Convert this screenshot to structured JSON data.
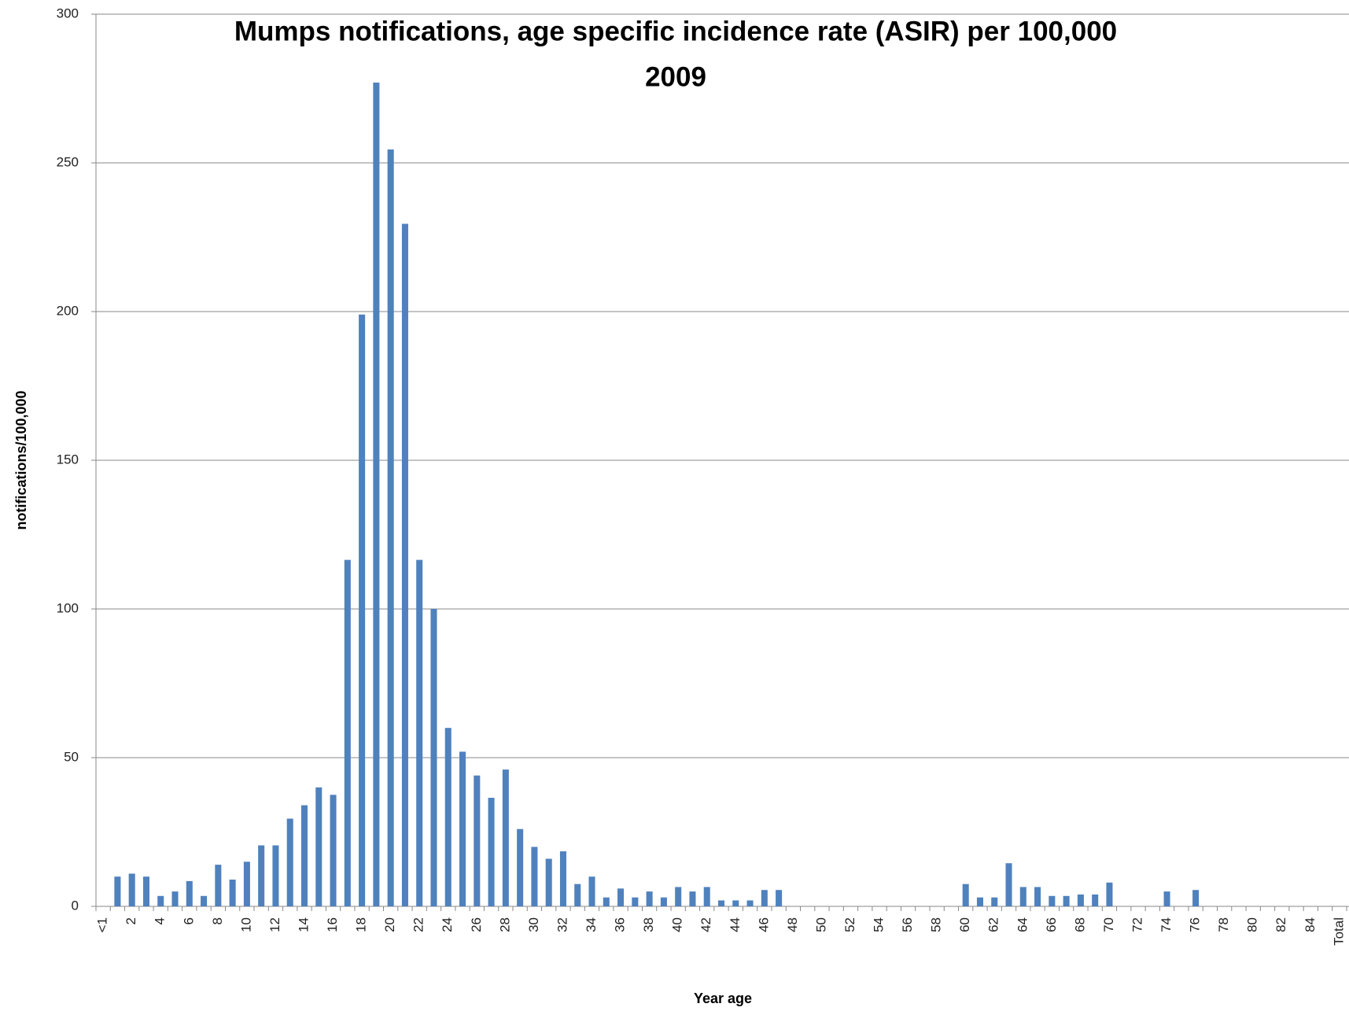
{
  "chart_data": {
    "type": "bar",
    "title": "Mumps notifications, age specific incidence rate (ASIR) per 100,000",
    "subtitle": "2009",
    "x_label": "Year age",
    "y_label": "notifications/100,000",
    "categories": [
      "<1",
      null,
      "2",
      null,
      "4",
      null,
      "6",
      null,
      "8",
      null,
      "10",
      null,
      "12",
      null,
      "14",
      null,
      "16",
      null,
      "18",
      null,
      "20",
      null,
      "22",
      null,
      "24",
      null,
      "26",
      null,
      "28",
      null,
      "30",
      null,
      "32",
      null,
      "34",
      null,
      "36",
      null,
      "38",
      null,
      "40",
      null,
      "42",
      null,
      "44",
      null,
      "46",
      null,
      "48",
      null,
      "50",
      null,
      "52",
      null,
      "54",
      null,
      "56",
      null,
      "58",
      null,
      "60",
      null,
      "62",
      null,
      "64",
      null,
      "66",
      null,
      "68",
      null,
      "70",
      null,
      "72",
      null,
      "74",
      null,
      "76",
      null,
      "78",
      null,
      "80",
      null,
      "82",
      null,
      "84",
      null,
      "Total"
    ],
    "values": [
      0,
      10,
      11,
      10,
      3.5,
      5,
      8.5,
      3.5,
      14,
      9,
      15,
      20.5,
      20.5,
      29.5,
      34,
      40,
      37.5,
      116.5,
      199,
      277,
      254.5,
      229.5,
      116.5,
      100,
      60,
      52,
      44,
      36.5,
      46,
      26,
      20,
      16,
      18.5,
      7.5,
      10,
      3,
      6,
      3,
      5,
      3,
      6.5,
      5,
      6.5,
      2,
      2,
      2,
      5.5,
      5.5,
      0,
      0,
      0,
      0,
      0,
      0,
      0,
      0,
      0,
      0,
      0,
      0,
      7.5,
      3,
      3,
      14.5,
      6.5,
      6.5,
      3.5,
      3.5,
      4,
      4,
      8,
      0,
      0,
      0,
      5,
      0,
      5.5,
      0,
      0,
      0,
      0,
      0,
      0,
      0,
      0,
      0,
      0
    ],
    "color": "#4f81bd",
    "ylim": [
      0,
      300
    ],
    "yticks": [
      0,
      50,
      100,
      150,
      200,
      250,
      300
    ],
    "grid": true
  }
}
